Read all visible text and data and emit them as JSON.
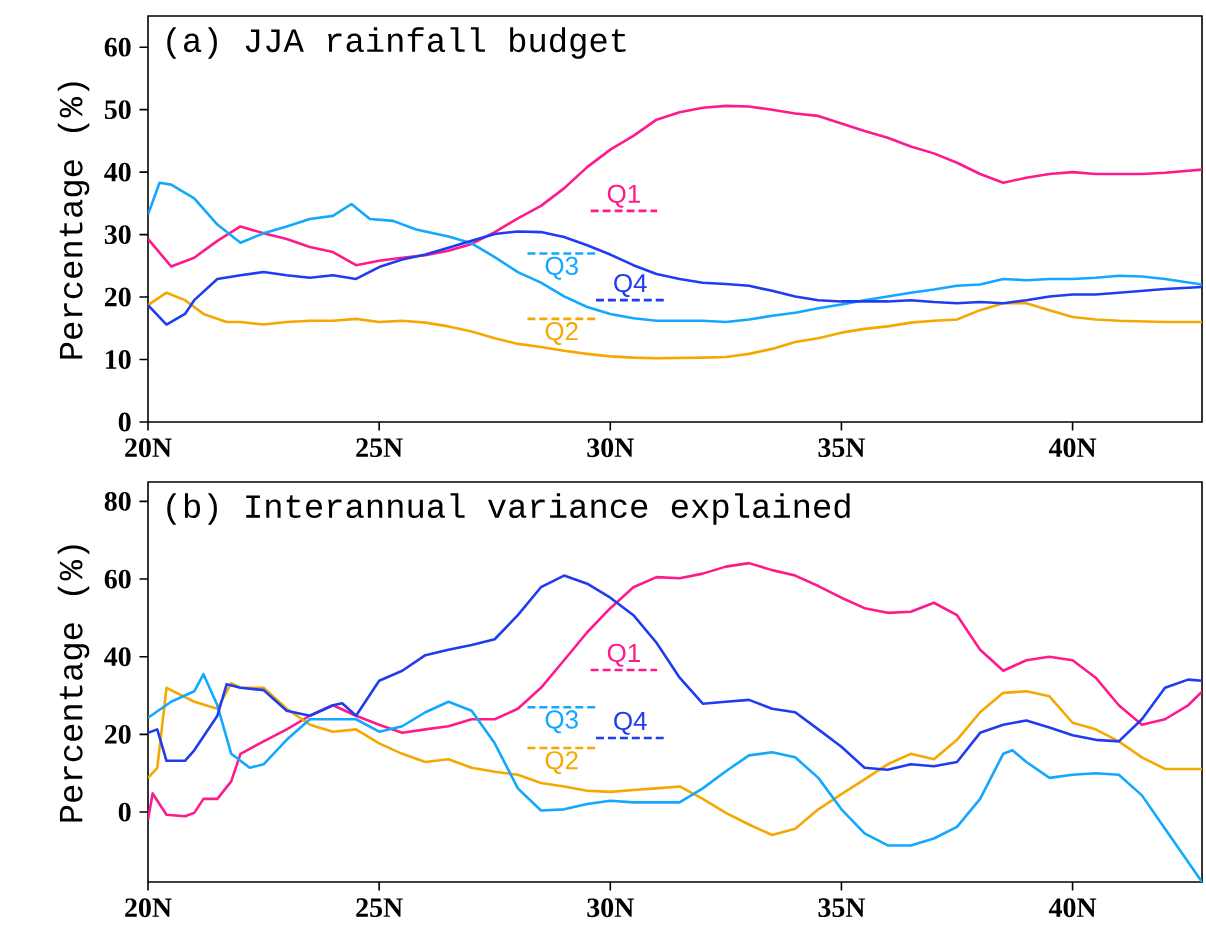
{
  "chart_data": [
    {
      "type": "line",
      "title": "(a) JJA rainfall budget",
      "ylabel": "Percentage (%)",
      "xlim": [
        20,
        42.8
      ],
      "ylim": [
        0,
        65
      ],
      "xticks": [
        {
          "value": 20,
          "label": "20N"
        },
        {
          "value": 25,
          "label": "25N"
        },
        {
          "value": 30,
          "label": "30N"
        },
        {
          "value": 35,
          "label": "35N"
        },
        {
          "value": 40,
          "label": "40N"
        }
      ],
      "yticks": [
        0,
        10,
        20,
        30,
        40,
        50,
        60
      ],
      "legend": "center",
      "series": [
        {
          "name": "Q1",
          "color": "#ff1a8c",
          "x": [
            20,
            20.5,
            21,
            21.5,
            22,
            22.5,
            23,
            23.5,
            24,
            24.5,
            25,
            25.5,
            26,
            26.5,
            27,
            27.5,
            28,
            28.5,
            29,
            29.5,
            30,
            30.5,
            31,
            31.5,
            32,
            32.5,
            33,
            33.5,
            34,
            34.5,
            35,
            35.5,
            36,
            36.5,
            37,
            37.5,
            38,
            38.5,
            39,
            39.5,
            40,
            40.5,
            41,
            41.5,
            42,
            42.8
          ],
          "values": [
            29.3,
            24.9,
            26.3,
            29,
            31.3,
            30.2,
            29.3,
            28,
            27.2,
            25.1,
            25.8,
            26.3,
            26.7,
            27.4,
            28.5,
            30.4,
            32.6,
            34.6,
            37.4,
            40.8,
            43.6,
            45.8,
            48.4,
            49.6,
            50.3,
            50.6,
            50.5,
            50,
            49.4,
            49,
            47.8,
            46.6,
            45.5,
            44.1,
            43,
            41.5,
            39.7,
            38.3,
            39.1,
            39.7,
            40,
            39.7,
            39.7,
            39.7,
            39.9,
            40.4
          ]
        },
        {
          "name": "Q2",
          "color": "#f5a800",
          "x": [
            20,
            20.4,
            20.8,
            21.2,
            21.7,
            22,
            22.5,
            23,
            23.5,
            24,
            24.5,
            25,
            25.5,
            26,
            26.5,
            27,
            27.5,
            28,
            28.5,
            29,
            29.5,
            30,
            30.5,
            31,
            32,
            32.5,
            33,
            33.5,
            34,
            34.5,
            35,
            35.5,
            36,
            36.5,
            37,
            37.5,
            38,
            38.5,
            39,
            39.5,
            40,
            40.5,
            41,
            42,
            42.8
          ],
          "values": [
            18.7,
            20.7,
            19.5,
            17.3,
            16,
            16,
            15.6,
            16,
            16.2,
            16.2,
            16.5,
            16,
            16.2,
            15.9,
            15.3,
            14.5,
            13.4,
            12.5,
            12,
            11.4,
            10.9,
            10.5,
            10.3,
            10.2,
            10.3,
            10.4,
            10.9,
            11.7,
            12.8,
            13.4,
            14.3,
            14.9,
            15.3,
            15.9,
            16.2,
            16.4,
            17.9,
            19,
            19,
            17.9,
            16.8,
            16.4,
            16.2,
            16,
            16
          ]
        },
        {
          "name": "Q3",
          "color": "#12a8ff",
          "x": [
            20,
            20.25,
            20.5,
            21,
            21.5,
            22,
            22.5,
            23,
            23.5,
            24,
            24.4,
            24.8,
            25.3,
            25.8,
            26.5,
            27,
            27.5,
            28,
            28.5,
            29,
            29.5,
            30,
            30.5,
            31,
            32,
            32.5,
            33,
            33.5,
            34,
            34.5,
            35,
            35.5,
            36,
            36.5,
            37,
            37.5,
            38,
            38.5,
            39,
            39.5,
            40,
            40.5,
            41,
            41.5,
            42,
            42.8
          ],
          "values": [
            33.2,
            38.3,
            38,
            35.8,
            31.6,
            28.7,
            30.2,
            31.3,
            32.5,
            33,
            34.9,
            32.5,
            32.2,
            30.8,
            29.7,
            28.6,
            26.4,
            24,
            22.3,
            20.1,
            18.4,
            17.3,
            16.6,
            16.2,
            16.2,
            16,
            16.4,
            17,
            17.5,
            18.2,
            18.8,
            19.5,
            20.1,
            20.7,
            21.2,
            21.8,
            22,
            22.9,
            22.7,
            22.9,
            22.9,
            23.1,
            23.4,
            23.3,
            22.9,
            22
          ]
        },
        {
          "name": "Q4",
          "color": "#1f3cf0",
          "x": [
            20,
            20.4,
            20.8,
            21,
            21.5,
            22,
            22.5,
            23,
            23.5,
            24,
            24.5,
            25,
            25.5,
            26,
            26.5,
            27,
            27.5,
            28,
            28.5,
            29,
            29.5,
            30,
            30.5,
            31,
            31.5,
            32,
            32.5,
            33,
            33.5,
            34,
            34.5,
            35,
            36,
            36.5,
            37,
            37.5,
            38,
            38.5,
            39,
            39.5,
            40,
            40.5,
            41,
            41.5,
            42,
            42.8
          ],
          "values": [
            18.7,
            15.6,
            17.3,
            19.5,
            22.9,
            23.5,
            24,
            23.5,
            23.1,
            23.5,
            22.9,
            24.8,
            26,
            26.8,
            27.9,
            29,
            30.1,
            30.5,
            30.4,
            29.6,
            28.3,
            26.8,
            25.1,
            23.7,
            22.9,
            22.3,
            22.1,
            21.8,
            21,
            20.1,
            19.5,
            19.3,
            19.3,
            19.5,
            19.2,
            19,
            19.2,
            19,
            19.5,
            20.1,
            20.4,
            20.4,
            20.7,
            21,
            21.3,
            21.6
          ]
        }
      ]
    },
    {
      "type": "line",
      "title": "(b) Interannual variance explained",
      "ylabel": "Percentage (%)",
      "xlim": [
        20,
        42.8
      ],
      "ylim": [
        -18,
        85
      ],
      "xticks": [
        {
          "value": 20,
          "label": "20N"
        },
        {
          "value": 25,
          "label": "25N"
        },
        {
          "value": 30,
          "label": "30N"
        },
        {
          "value": 35,
          "label": "35N"
        },
        {
          "value": 40,
          "label": "40N"
        }
      ],
      "yticks": [
        0,
        20,
        40,
        60,
        80
      ],
      "legend": "center",
      "series": [
        {
          "name": "Q1",
          "color": "#ff1a8c",
          "x": [
            20,
            20.1,
            20.4,
            20.8,
            21,
            21.2,
            21.5,
            21.8,
            22,
            22.5,
            23,
            23.5,
            24,
            24.5,
            25,
            25.5,
            26,
            26.5,
            27,
            27.5,
            28,
            28.5,
            29,
            29.5,
            30,
            30.5,
            31,
            31.5,
            32,
            32.5,
            33,
            33.5,
            34,
            34.5,
            35,
            35.5,
            36,
            36.5,
            37,
            37.5,
            38,
            38.5,
            39,
            39.5,
            40,
            40.5,
            41,
            41.5,
            42,
            42.5,
            42.8
          ],
          "values": [
            -2,
            4.8,
            -0.7,
            -1.1,
            -0.2,
            3.4,
            3.4,
            7.9,
            15,
            18.2,
            21.3,
            24.8,
            27.5,
            24.8,
            22.5,
            20.4,
            21.3,
            22.1,
            23.9,
            23.9,
            26.6,
            32,
            39.1,
            46.3,
            52.5,
            57.9,
            60.5,
            60.2,
            61.4,
            63.2,
            64.1,
            62.3,
            60.9,
            58.2,
            55.2,
            52.5,
            51.3,
            51.6,
            53.9,
            50.7,
            41.8,
            36.4,
            39.1,
            40,
            39.1,
            34.6,
            27.5,
            22.5,
            23.9,
            27.5,
            31
          ]
        },
        {
          "name": "Q2",
          "color": "#f5a800",
          "x": [
            20,
            20.2,
            20.4,
            21,
            21.5,
            21.8,
            22,
            22.5,
            23,
            23.5,
            24,
            24.5,
            25,
            25.5,
            26,
            26.5,
            27,
            27.5,
            28,
            28.5,
            29,
            29.5,
            30,
            30.5,
            31,
            31.5,
            32,
            32.5,
            33,
            33.5,
            34,
            34.5,
            35,
            35.5,
            36,
            36.5,
            37,
            37.5,
            38,
            38.5,
            39,
            39.5,
            40,
            40.5,
            41,
            41.5,
            42,
            42.8
          ],
          "values": [
            8.8,
            11.4,
            32,
            28.4,
            26.6,
            33.2,
            32,
            32,
            26.6,
            22.5,
            20.7,
            21.3,
            17.7,
            15,
            12.9,
            13.6,
            11.4,
            10.4,
            9.6,
            7.5,
            6.6,
            5.5,
            5.2,
            5.7,
            6.1,
            6.6,
            3.4,
            -0.2,
            -3.2,
            -5.9,
            -4.3,
            0.7,
            4.6,
            8.4,
            12.3,
            15,
            13.6,
            18.6,
            25.7,
            30.7,
            31.1,
            29.8,
            23,
            21.3,
            18.2,
            14.1,
            11.1,
            11.1
          ]
        },
        {
          "name": "Q3",
          "color": "#12a8ff",
          "x": [
            20,
            20.5,
            21,
            21.2,
            21.5,
            21.8,
            22.2,
            22.5,
            23,
            23.5,
            24,
            24.5,
            25,
            25.5,
            26,
            26.5,
            27,
            27.5,
            28,
            28.5,
            29,
            29.5,
            30,
            30.5,
            31,
            31.5,
            32,
            32.5,
            33,
            33.5,
            34,
            34.5,
            35,
            35.5,
            36,
            36.5,
            37,
            37.5,
            38,
            38.5,
            38.7,
            39,
            39.5,
            40,
            40.5,
            41,
            41.5,
            42,
            42.8
          ],
          "values": [
            24.3,
            28.4,
            31.1,
            35.5,
            27.5,
            15,
            11.4,
            12.3,
            18.6,
            23.9,
            23.9,
            23.9,
            20.7,
            22.1,
            25.7,
            28.4,
            26.1,
            17.7,
            6.1,
            0.4,
            0.7,
            2.1,
            2.9,
            2.5,
            2.5,
            2.5,
            6.1,
            10.5,
            14.6,
            15.4,
            14.1,
            8.8,
            0.7,
            -5.5,
            -8.6,
            -8.6,
            -6.8,
            -3.8,
            3.4,
            15,
            15.9,
            12.9,
            8.8,
            9.6,
            10,
            9.6,
            4.3,
            -4.3,
            -18
          ]
        },
        {
          "name": "Q4",
          "color": "#1f3cf0",
          "x": [
            20,
            20.2,
            20.4,
            20.8,
            21,
            21.5,
            21.7,
            22,
            22.5,
            23,
            23.5,
            24,
            24.2,
            24.5,
            25,
            25.5,
            26,
            26.5,
            27,
            27.5,
            28,
            28.5,
            29,
            29.5,
            30,
            30.5,
            31,
            31.5,
            32,
            32.5,
            33,
            33.5,
            34,
            34.5,
            35,
            35.5,
            36,
            36.5,
            37,
            37.5,
            38,
            38.5,
            39,
            39.5,
            40,
            40.5,
            41,
            41.5,
            42,
            42.5,
            42.8
          ],
          "values": [
            20.4,
            21.3,
            13.2,
            13.2,
            15.9,
            24.8,
            32.9,
            32,
            31.4,
            26.1,
            24.8,
            27.5,
            28,
            24.8,
            33.8,
            36.4,
            40.4,
            41.8,
            43,
            44.5,
            50.7,
            57.9,
            60.9,
            58.8,
            55.2,
            50.7,
            43.6,
            34.6,
            27.9,
            28.4,
            28.9,
            26.6,
            25.7,
            21.3,
            16.8,
            11.4,
            10.9,
            12.3,
            11.8,
            12.9,
            20.4,
            22.5,
            23.6,
            21.8,
            19.8,
            18.6,
            18.2,
            23.9,
            32,
            34.1,
            33.8
          ]
        }
      ]
    }
  ]
}
